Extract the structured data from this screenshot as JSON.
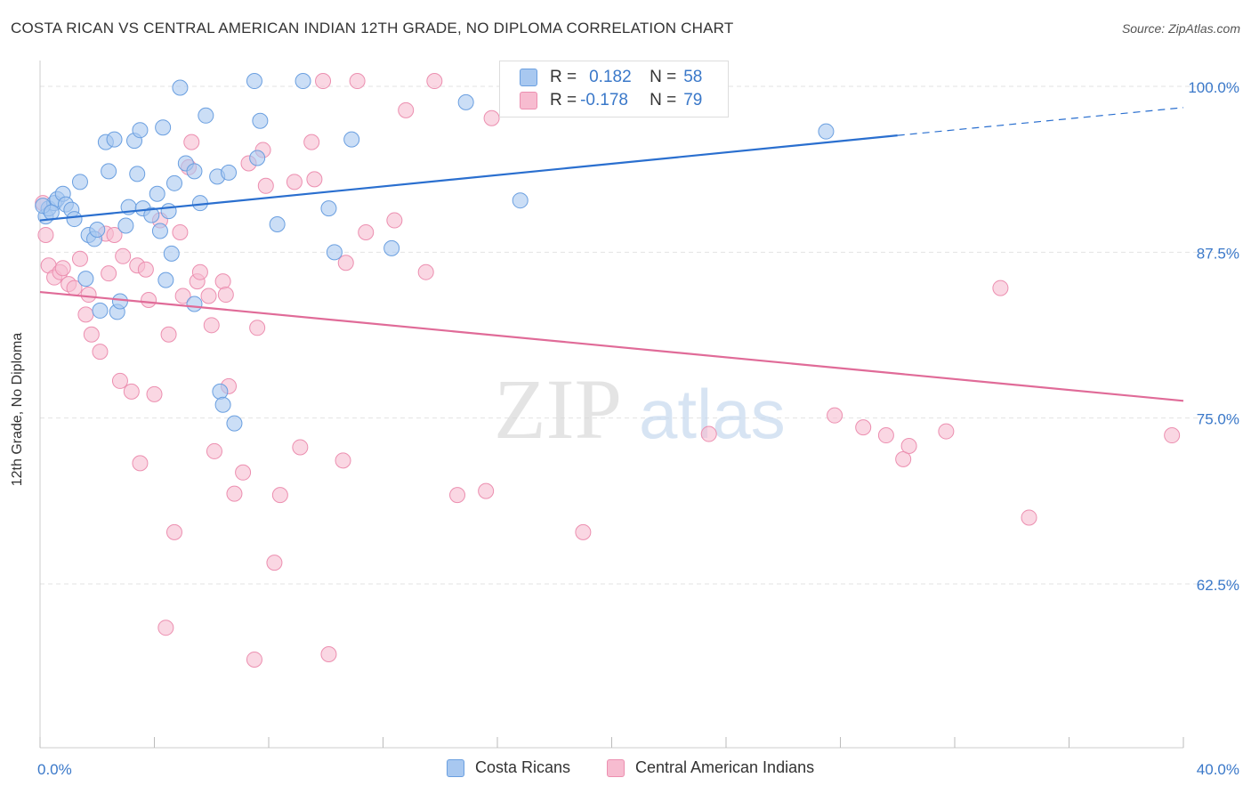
{
  "title": "COSTA RICAN VS CENTRAL AMERICAN INDIAN 12TH GRADE, NO DIPLOMA CORRELATION CHART",
  "source": "Source: ZipAtlas.com",
  "watermark": {
    "zip": "ZIP",
    "atlas": "atlas"
  },
  "colors": {
    "blue_fill": "#a8c8f0",
    "blue_stroke": "#6a9fe0",
    "blue_line": "#2a6fcf",
    "pink_fill": "#f7bcd0",
    "pink_stroke": "#ec8fb0",
    "pink_line": "#e06b98",
    "axis_label_blue": "#3a78c9",
    "grid": "#e3e3e3"
  },
  "legend": {
    "rows": [
      {
        "r_label": "R =",
        "r_value": "0.182",
        "n_label": "N =",
        "n_value": "58"
      },
      {
        "r_label": "R =",
        "r_value": "-0.178",
        "n_label": "N =",
        "n_value": "79"
      }
    ]
  },
  "chart_data": {
    "type": "scatter",
    "xlabel": "",
    "ylabel": "12th Grade, No Diploma",
    "xlim": [
      0,
      40
    ],
    "ylim": [
      50,
      100
    ],
    "x_tick_labels": [
      "0.0%",
      "40.0%"
    ],
    "y_ticks": [
      62.5,
      75.0,
      87.5,
      100.0
    ],
    "y_tick_labels": [
      "62.5%",
      "75.0%",
      "87.5%",
      "100.0%"
    ],
    "grid": true,
    "series": [
      {
        "name": "Costa Ricans",
        "trend": {
          "x": [
            0,
            30
          ],
          "y": [
            89.9,
            96.3
          ],
          "dashed_extension_x": [
            30,
            40
          ],
          "dashed_extension_y": [
            96.3,
            98.4
          ]
        },
        "points": [
          [
            0.2,
            90.2
          ],
          [
            0.3,
            90.8
          ],
          [
            0.5,
            91.2
          ],
          [
            0.6,
            91.5
          ],
          [
            0.8,
            91.9
          ],
          [
            0.9,
            91.1
          ],
          [
            1.1,
            90.7
          ],
          [
            1.2,
            90.0
          ],
          [
            1.4,
            92.8
          ],
          [
            1.6,
            85.5
          ],
          [
            1.7,
            88.8
          ],
          [
            1.9,
            88.5
          ],
          [
            2.0,
            89.2
          ],
          [
            2.1,
            83.1
          ],
          [
            2.3,
            95.8
          ],
          [
            2.4,
            93.6
          ],
          [
            2.6,
            96.0
          ],
          [
            2.7,
            83.0
          ],
          [
            2.8,
            83.8
          ],
          [
            3.0,
            89.5
          ],
          [
            3.1,
            90.9
          ],
          [
            3.3,
            95.9
          ],
          [
            3.4,
            93.4
          ],
          [
            3.5,
            96.7
          ],
          [
            3.6,
            90.8
          ],
          [
            3.9,
            90.3
          ],
          [
            4.1,
            91.9
          ],
          [
            4.2,
            89.1
          ],
          [
            4.3,
            96.9
          ],
          [
            4.4,
            85.4
          ],
          [
            4.5,
            90.6
          ],
          [
            4.6,
            87.4
          ],
          [
            4.7,
            92.7
          ],
          [
            4.9,
            99.9
          ],
          [
            5.1,
            94.2
          ],
          [
            5.4,
            93.6
          ],
          [
            5.4,
            83.6
          ],
          [
            5.6,
            91.2
          ],
          [
            5.8,
            97.8
          ],
          [
            6.2,
            93.2
          ],
          [
            6.3,
            77.0
          ],
          [
            6.4,
            76.0
          ],
          [
            6.6,
            93.5
          ],
          [
            6.8,
            74.6
          ],
          [
            7.5,
            100.4
          ],
          [
            7.6,
            94.6
          ],
          [
            7.7,
            97.4
          ],
          [
            8.3,
            89.6
          ],
          [
            9.2,
            100.4
          ],
          [
            10.1,
            90.8
          ],
          [
            10.3,
            87.5
          ],
          [
            10.9,
            96.0
          ],
          [
            12.3,
            87.8
          ],
          [
            14.9,
            98.8
          ],
          [
            16.8,
            91.4
          ],
          [
            27.5,
            96.6
          ],
          [
            0.1,
            91.0
          ],
          [
            0.4,
            90.5
          ]
        ]
      },
      {
        "name": "Central American Indians",
        "trend": {
          "x": [
            0,
            40
          ],
          "y": [
            84.5,
            76.3
          ]
        },
        "points": [
          [
            0.1,
            91.2
          ],
          [
            0.2,
            88.8
          ],
          [
            0.3,
            86.5
          ],
          [
            0.5,
            85.6
          ],
          [
            0.7,
            86.0
          ],
          [
            0.8,
            86.3
          ],
          [
            1.0,
            85.1
          ],
          [
            1.2,
            84.8
          ],
          [
            1.4,
            87.0
          ],
          [
            1.6,
            82.8
          ],
          [
            1.7,
            84.3
          ],
          [
            1.8,
            81.3
          ],
          [
            2.1,
            80.0
          ],
          [
            2.3,
            88.9
          ],
          [
            2.4,
            85.9
          ],
          [
            2.6,
            88.8
          ],
          [
            2.8,
            77.8
          ],
          [
            2.9,
            87.2
          ],
          [
            3.2,
            77.0
          ],
          [
            3.4,
            86.5
          ],
          [
            3.5,
            71.6
          ],
          [
            3.7,
            86.2
          ],
          [
            3.8,
            83.9
          ],
          [
            4.0,
            76.8
          ],
          [
            4.2,
            89.9
          ],
          [
            4.4,
            59.2
          ],
          [
            4.5,
            81.3
          ],
          [
            4.7,
            66.4
          ],
          [
            4.9,
            89.0
          ],
          [
            5.0,
            84.2
          ],
          [
            5.2,
            93.9
          ],
          [
            5.3,
            95.8
          ],
          [
            5.5,
            85.3
          ],
          [
            5.6,
            86.0
          ],
          [
            5.9,
            84.2
          ],
          [
            6.1,
            72.5
          ],
          [
            6.4,
            85.3
          ],
          [
            6.5,
            84.3
          ],
          [
            6.6,
            77.4
          ],
          [
            6.8,
            69.3
          ],
          [
            7.1,
            70.9
          ],
          [
            7.3,
            94.2
          ],
          [
            7.5,
            56.8
          ],
          [
            7.6,
            81.8
          ],
          [
            7.8,
            95.2
          ],
          [
            7.9,
            92.5
          ],
          [
            8.2,
            64.1
          ],
          [
            8.4,
            69.2
          ],
          [
            8.9,
            92.8
          ],
          [
            9.1,
            72.8
          ],
          [
            9.5,
            95.8
          ],
          [
            9.9,
            100.4
          ],
          [
            10.1,
            57.2
          ],
          [
            10.6,
            71.8
          ],
          [
            10.7,
            86.7
          ],
          [
            11.1,
            100.4
          ],
          [
            11.4,
            89.0
          ],
          [
            12.4,
            89.9
          ],
          [
            12.8,
            98.2
          ],
          [
            13.5,
            86.0
          ],
          [
            13.8,
            100.4
          ],
          [
            14.6,
            69.2
          ],
          [
            15.6,
            69.5
          ],
          [
            15.8,
            97.6
          ],
          [
            17.3,
            100.0
          ],
          [
            19.0,
            66.4
          ],
          [
            23.4,
            73.8
          ],
          [
            27.8,
            75.2
          ],
          [
            28.8,
            74.3
          ],
          [
            29.6,
            73.7
          ],
          [
            30.2,
            71.9
          ],
          [
            30.4,
            72.9
          ],
          [
            31.7,
            74.0
          ],
          [
            33.6,
            84.8
          ],
          [
            34.6,
            67.5
          ],
          [
            39.6,
            73.7
          ],
          [
            18.5,
            100.0
          ],
          [
            9.6,
            93.0
          ],
          [
            6.0,
            82.0
          ]
        ]
      }
    ]
  }
}
